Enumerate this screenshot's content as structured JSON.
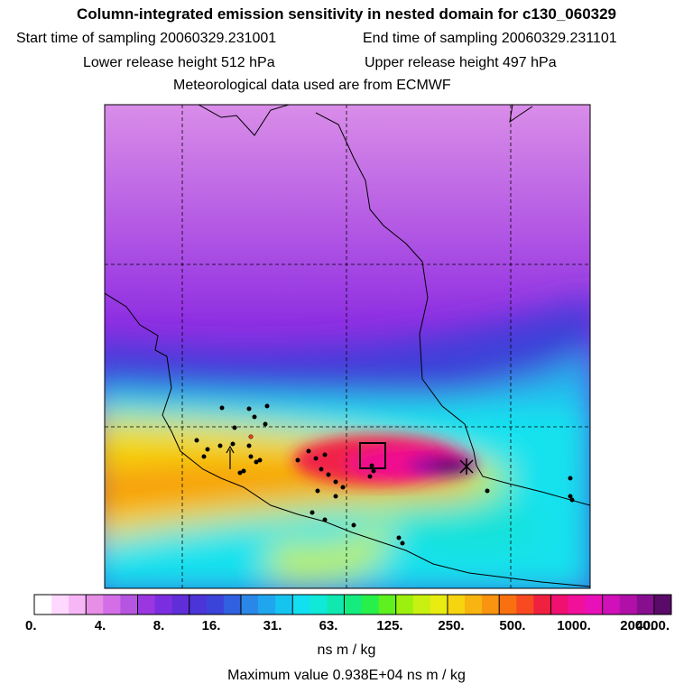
{
  "header": {
    "title": "Column-integrated emission sensitivity in nested domain for c130_060329",
    "start_label": "Start time of sampling 20060329.231001",
    "end_label": "End time of sampling 20060329.231101",
    "lower_label": "Lower release height  512 hPa",
    "upper_label": "Upper release height  497 hPa",
    "met_label": "Meteorological data used are from ECMWF"
  },
  "colorbar": {
    "colors": [
      "#ffffff",
      "#ffd8ff",
      "#f7b7f7",
      "#e78fe7",
      "#d36ee7",
      "#b655e0",
      "#9a37e0",
      "#7b2ee0",
      "#5f2ed8",
      "#4b35d8",
      "#3c43d8",
      "#3060e0",
      "#2a87e8",
      "#1fa6ee",
      "#16c4f0",
      "#12dff0",
      "#10e8d8",
      "#10e8b0",
      "#14ec80",
      "#28f04a",
      "#5ff020",
      "#9cf010",
      "#c8f010",
      "#e8ec10",
      "#f6d410",
      "#f8b410",
      "#f89410",
      "#f87010",
      "#f84a20",
      "#f02040",
      "#f01070",
      "#f0109a",
      "#e810b8",
      "#d010b8",
      "#b010a8",
      "#880e90",
      "#5a0a68"
    ],
    "tick_labels": [
      "0.",
      "4.",
      "8.",
      "16.",
      "31.",
      "63.",
      "125.",
      "250.",
      "500.",
      "1000.",
      "2000.",
      "4000."
    ],
    "units": "ns m / kg"
  },
  "footer": {
    "max_value": "Maximum value  0.938E+04 ns m / kg"
  },
  "map": {
    "release_marker": "x-cross-icon",
    "target_box": "square-box-icon",
    "station_color": "#000000"
  }
}
